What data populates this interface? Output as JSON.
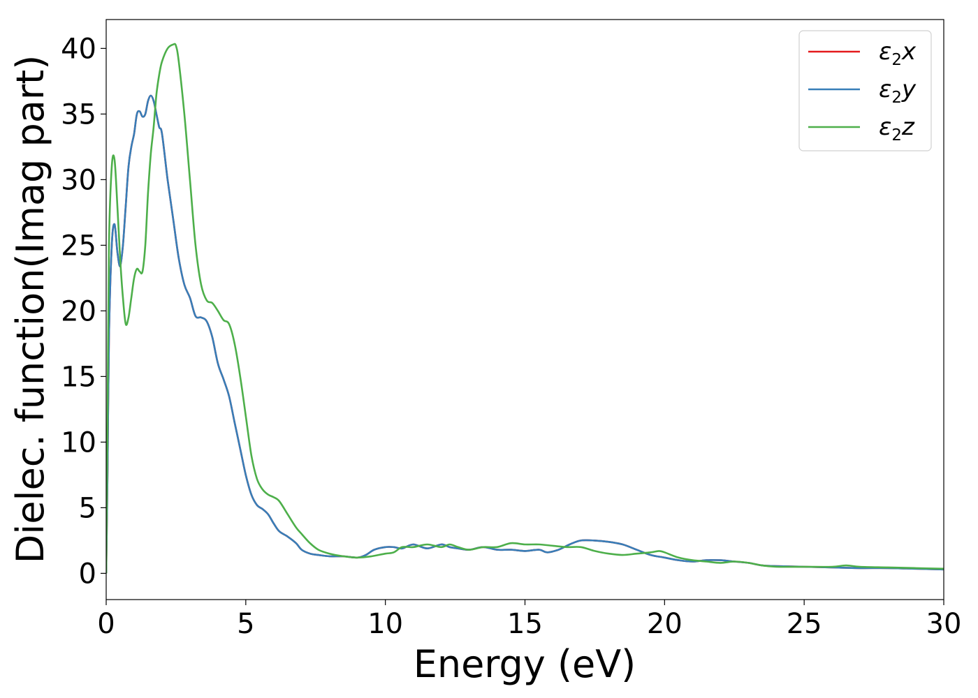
{
  "chart_data": {
    "type": "line",
    "xlabel": "Energy (eV)",
    "ylabel": "Dielec. function(Imag part)",
    "xlim": [
      0,
      30
    ],
    "ylim": [
      -2,
      42.2
    ],
    "xticks": [
      0,
      5,
      10,
      15,
      20,
      25,
      30
    ],
    "yticks": [
      0,
      5,
      10,
      15,
      20,
      25,
      30,
      35,
      40
    ],
    "grid": false,
    "legend_position": "top-right",
    "series": [
      {
        "name": "ε2x",
        "legend_main": "ε",
        "legend_sub": "2",
        "legend_suffix": "x",
        "color": "#e41a1c",
        "x": [
          0,
          0.05,
          0.1,
          0.2,
          0.3,
          0.4,
          0.5,
          0.6,
          0.7,
          0.8,
          0.9,
          1.0,
          1.1,
          1.2,
          1.3,
          1.4,
          1.5,
          1.6,
          1.7,
          1.8,
          1.9,
          2.0,
          2.2,
          2.4,
          2.6,
          2.8,
          3.0,
          3.2,
          3.4,
          3.6,
          3.8,
          4.0,
          4.2,
          4.4,
          4.6,
          4.8,
          5.0,
          5.2,
          5.4,
          5.6,
          5.8,
          6.0,
          6.2,
          6.5,
          6.8,
          7.0,
          7.3,
          7.6,
          8.0,
          8.5,
          9.0,
          9.3,
          9.6,
          10.0,
          10.3,
          10.6,
          11.0,
          11.5,
          12.0,
          12.3,
          12.6,
          13.0,
          13.5,
          14.0,
          14.5,
          15.0,
          15.5,
          15.8,
          16.2,
          16.6,
          17.0,
          17.5,
          18.0,
          18.5,
          19.0,
          19.5,
          20.0,
          20.5,
          21.0,
          21.5,
          22.0,
          22.5,
          23.0,
          23.5,
          24.0,
          25.0,
          26.0,
          27.0,
          28.0,
          29.0,
          30.0
        ],
        "y": [
          0,
          8,
          18,
          25,
          26.6,
          24.5,
          23.4,
          25,
          28,
          31,
          32.5,
          33.5,
          35,
          35.2,
          34.8,
          35,
          36,
          36.4,
          36,
          35,
          34,
          33.5,
          30,
          27,
          24,
          22,
          21,
          19.6,
          19.5,
          19.2,
          18,
          16,
          14.8,
          13.5,
          11.5,
          9.5,
          7.5,
          6,
          5.2,
          4.9,
          4.5,
          3.8,
          3.2,
          2.8,
          2.3,
          1.8,
          1.5,
          1.4,
          1.3,
          1.3,
          1.2,
          1.4,
          1.8,
          2.0,
          2.0,
          1.9,
          2.2,
          1.9,
          2.2,
          2.0,
          1.9,
          1.8,
          2.0,
          1.8,
          1.8,
          1.7,
          1.8,
          1.6,
          1.8,
          2.2,
          2.5,
          2.5,
          2.4,
          2.2,
          1.8,
          1.4,
          1.2,
          1.0,
          0.9,
          1.0,
          1.0,
          0.9,
          0.8,
          0.6,
          0.55,
          0.5,
          0.45,
          0.4,
          0.4,
          0.35,
          0.3
        ]
      },
      {
        "name": "ε2y",
        "legend_main": "ε",
        "legend_sub": "2",
        "legend_suffix": "y",
        "color": "#377eb8",
        "x": [
          0,
          0.05,
          0.1,
          0.2,
          0.3,
          0.4,
          0.5,
          0.6,
          0.7,
          0.8,
          0.9,
          1.0,
          1.1,
          1.2,
          1.3,
          1.4,
          1.5,
          1.6,
          1.7,
          1.8,
          1.9,
          2.0,
          2.2,
          2.4,
          2.6,
          2.8,
          3.0,
          3.2,
          3.4,
          3.6,
          3.8,
          4.0,
          4.2,
          4.4,
          4.6,
          4.8,
          5.0,
          5.2,
          5.4,
          5.6,
          5.8,
          6.0,
          6.2,
          6.5,
          6.8,
          7.0,
          7.3,
          7.6,
          8.0,
          8.5,
          9.0,
          9.3,
          9.6,
          10.0,
          10.3,
          10.6,
          11.0,
          11.5,
          12.0,
          12.3,
          12.6,
          13.0,
          13.5,
          14.0,
          14.5,
          15.0,
          15.5,
          15.8,
          16.2,
          16.6,
          17.0,
          17.5,
          18.0,
          18.5,
          19.0,
          19.5,
          20.0,
          20.5,
          21.0,
          21.5,
          22.0,
          22.5,
          23.0,
          23.5,
          24.0,
          25.0,
          26.0,
          27.0,
          28.0,
          29.0,
          30.0
        ],
        "y": [
          0,
          8,
          18,
          25,
          26.6,
          24.5,
          23.4,
          25,
          28,
          31,
          32.5,
          33.5,
          35,
          35.2,
          34.8,
          35,
          36,
          36.4,
          36,
          35,
          34,
          33.5,
          30,
          27,
          24,
          22,
          21,
          19.6,
          19.5,
          19.2,
          18,
          16,
          14.8,
          13.5,
          11.5,
          9.5,
          7.5,
          6,
          5.2,
          4.9,
          4.5,
          3.8,
          3.2,
          2.8,
          2.3,
          1.8,
          1.5,
          1.4,
          1.3,
          1.3,
          1.2,
          1.4,
          1.8,
          2.0,
          2.0,
          1.9,
          2.2,
          1.9,
          2.2,
          2.0,
          1.9,
          1.8,
          2.0,
          1.8,
          1.8,
          1.7,
          1.8,
          1.6,
          1.8,
          2.2,
          2.5,
          2.5,
          2.4,
          2.2,
          1.8,
          1.4,
          1.2,
          1.0,
          0.9,
          1.0,
          1.0,
          0.9,
          0.8,
          0.6,
          0.55,
          0.5,
          0.45,
          0.4,
          0.4,
          0.35,
          0.3
        ]
      },
      {
        "name": "ε2z",
        "legend_main": "ε",
        "legend_sub": "2",
        "legend_suffix": "z",
        "color": "#4daf4a",
        "x": [
          0,
          0.05,
          0.1,
          0.2,
          0.3,
          0.4,
          0.5,
          0.6,
          0.7,
          0.8,
          0.9,
          1.0,
          1.1,
          1.2,
          1.3,
          1.4,
          1.5,
          1.6,
          1.7,
          1.8,
          1.9,
          2.0,
          2.2,
          2.4,
          2.5,
          2.6,
          2.8,
          3.0,
          3.2,
          3.4,
          3.6,
          3.8,
          4.0,
          4.2,
          4.4,
          4.6,
          4.8,
          5.0,
          5.2,
          5.4,
          5.6,
          5.8,
          6.0,
          6.2,
          6.5,
          6.8,
          7.0,
          7.3,
          7.6,
          8.0,
          8.5,
          9.0,
          9.5,
          10.0,
          10.3,
          10.6,
          11.0,
          11.5,
          12.0,
          12.3,
          12.6,
          13.0,
          13.5,
          14.0,
          14.5,
          15.0,
          15.5,
          16.0,
          16.5,
          17.0,
          17.5,
          18.0,
          18.5,
          19.0,
          19.5,
          19.8,
          20.0,
          20.5,
          21.0,
          21.5,
          22.0,
          22.5,
          23.0,
          23.5,
          24.0,
          25.0,
          26.0,
          26.5,
          27.0,
          28.0,
          29.0,
          30.0
        ],
        "y": [
          0,
          12,
          25,
          31,
          31.5,
          28,
          24,
          21,
          19,
          19.5,
          21,
          22.5,
          23.2,
          23,
          23,
          25,
          29,
          32,
          34,
          36.5,
          38,
          39,
          40,
          40.3,
          40.2,
          39,
          35,
          30,
          25,
          22,
          20.8,
          20.6,
          20,
          19.3,
          19,
          17.5,
          15,
          12,
          9,
          7.2,
          6.4,
          6,
          5.8,
          5.5,
          4.5,
          3.5,
          3,
          2.3,
          1.8,
          1.5,
          1.3,
          1.2,
          1.3,
          1.5,
          1.6,
          2.0,
          2.0,
          2.2,
          2.0,
          2.2,
          2.0,
          1.8,
          2.0,
          2.0,
          2.3,
          2.2,
          2.2,
          2.1,
          2.0,
          2.0,
          1.7,
          1.5,
          1.4,
          1.5,
          1.6,
          1.7,
          1.6,
          1.2,
          1.0,
          0.9,
          0.8,
          0.9,
          0.8,
          0.6,
          0.5,
          0.5,
          0.5,
          0.6,
          0.5,
          0.45,
          0.4,
          0.35
        ]
      }
    ]
  }
}
